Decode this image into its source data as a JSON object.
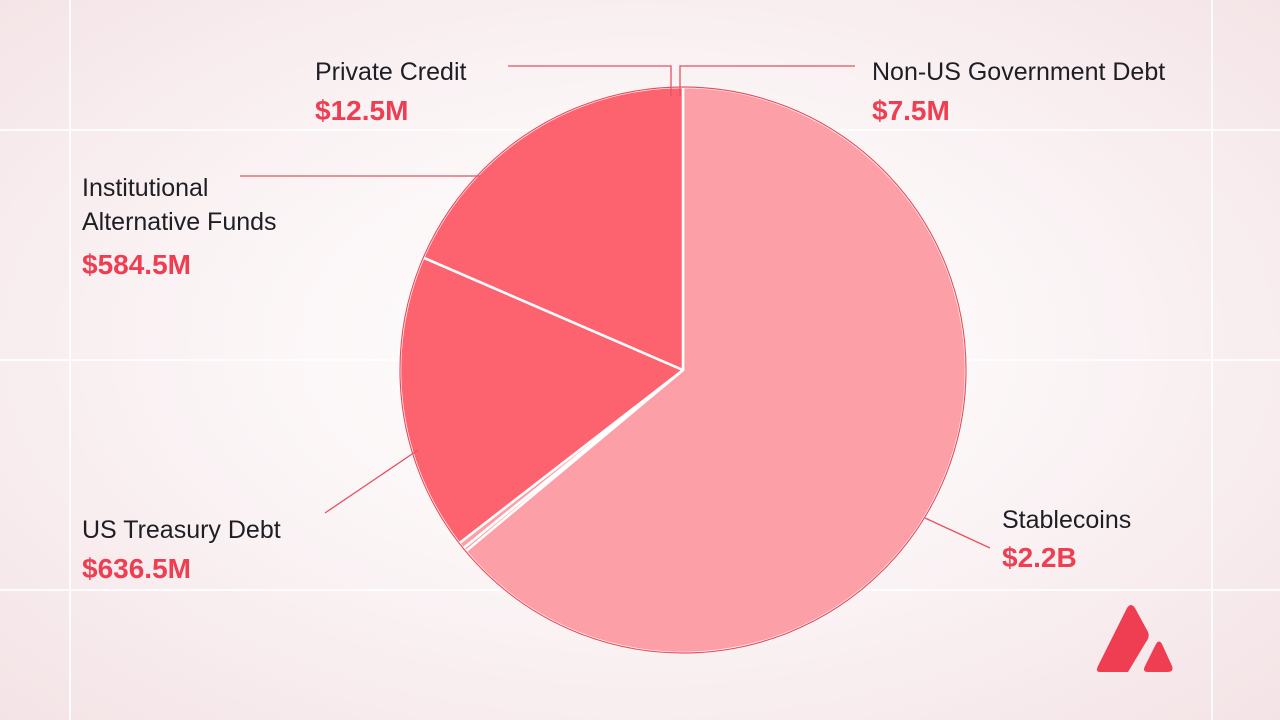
{
  "chart_data": {
    "type": "pie",
    "slices": [
      {
        "label": "Stablecoins",
        "value_label": "$2.2B",
        "value": 2200,
        "color": "#fd9fa6"
      },
      {
        "label": "US Treasury Debt",
        "value_label": "$636.5M",
        "value": 636.5,
        "color": "#fd636f"
      },
      {
        "label": "Institutional Alternative Funds",
        "label_lines": [
          "Institutional",
          "Alternative Funds"
        ],
        "value_label": "$584.5M",
        "value": 584.5,
        "color": "#fd636f"
      },
      {
        "label": "Private Credit",
        "value_label": "$12.5M",
        "value": 12.5,
        "color": "#fd9fa6"
      },
      {
        "label": "Non-US Government Debt",
        "value_label": "$7.5M",
        "value": 7.5,
        "color": "#fd9fa6"
      }
    ],
    "legend": "none",
    "colors": {
      "accent": "#ef3e52",
      "light_slice": "#fd9fa6",
      "dark_slice": "#fd636f"
    }
  },
  "brand": {
    "logo_icon": "avalanche-logo-icon",
    "color": "#ef3e52"
  }
}
